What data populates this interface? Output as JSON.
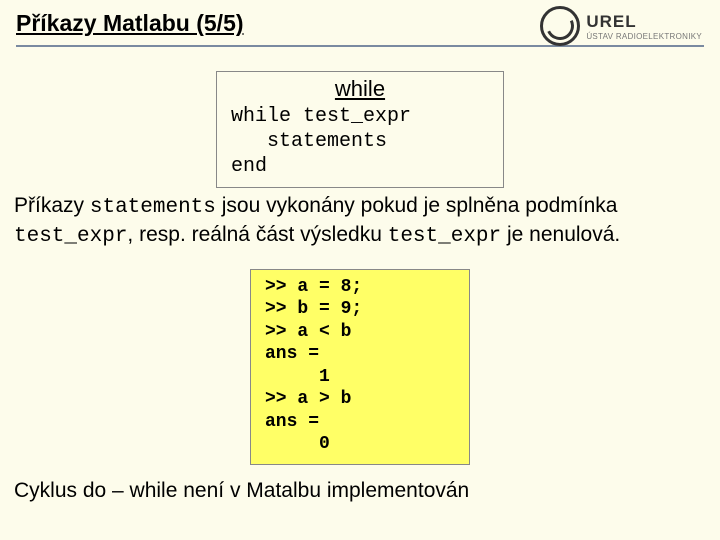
{
  "header": {
    "title": "Příkazy Matlabu (5/5)",
    "logo": {
      "main": "UREL",
      "sub": "ÚSTAV RADIOELEKTRONIKY"
    }
  },
  "box1": {
    "title": "while",
    "lines": [
      "while test_expr",
      "   statements",
      "end"
    ]
  },
  "para": {
    "pre": "Příkazy ",
    "c1": "statements",
    "mid1": " jsou vykonány pokud je splněna podmínka ",
    "c2": "test_expr",
    "mid2": ", resp. reálná část výsledku ",
    "c3": "test_expr",
    "post": " je nenulová."
  },
  "box2": {
    "lines": [
      ">> a = 8;",
      ">> b = 9;",
      ">> a < b",
      "ans =",
      "     1",
      ">> a > b",
      "ans =",
      "     0"
    ]
  },
  "footer": "Cyklus do – while není v Matalbu implementován"
}
